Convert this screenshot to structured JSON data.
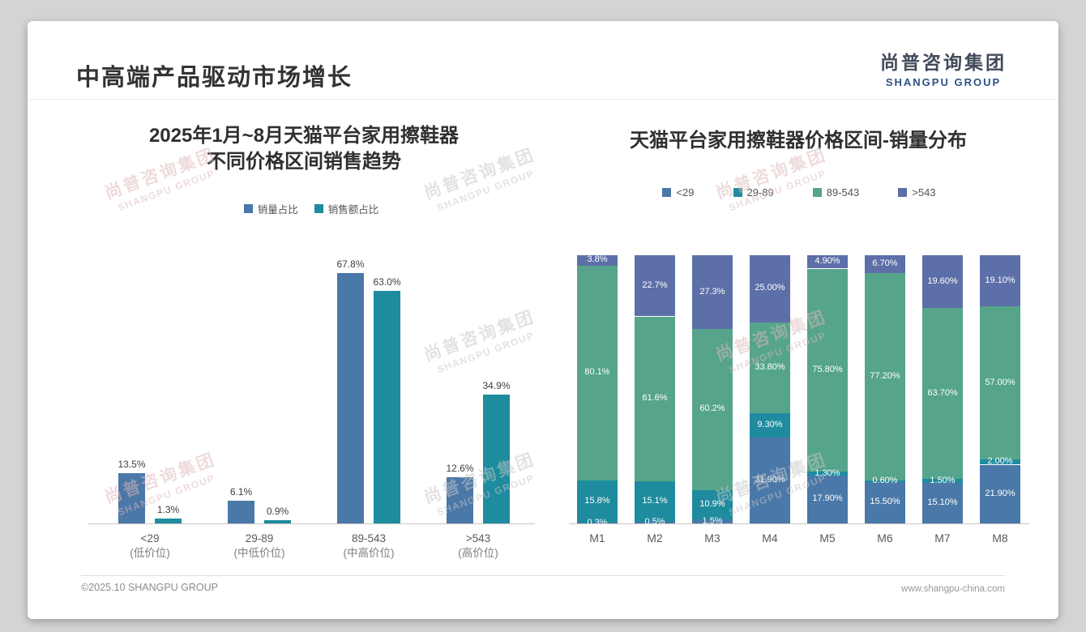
{
  "slide": {
    "title": "中高端产品驱动市场增长",
    "logo": {
      "cn": "尚普咨询集团",
      "en": "SHANGPU GROUP"
    },
    "footer": {
      "copyright": "©2025.10 SHANGPU GROUP",
      "website": "www.shangpu-china.com"
    },
    "watermark": {
      "line1": "尚普咨询集团",
      "line2": "SHANGPU GROUP"
    }
  },
  "colors": {
    "blue": "#4a78a8",
    "teal": "#1e8c9e",
    "green": "#55a48b",
    "purple": "#5d6fa8",
    "watermark_gray": "#c6c6c6",
    "watermark_pink": "#dfb9b9"
  },
  "chart_data": [
    {
      "type": "bar",
      "title": "2025年1月~8月天猫平台家用擦鞋器 不同价格区间销售趋势",
      "title_lines": [
        "2025年1月~8月天猫平台家用擦鞋器",
        "不同价格区间销售趋势"
      ],
      "categories": [
        "<29",
        "29-89",
        "89-543",
        ">543"
      ],
      "category_sublabels": [
        "(低价位)",
        "(中低价位)",
        "(中高价位)",
        "(高价位)"
      ],
      "ylim": [
        0,
        75
      ],
      "grid": false,
      "legend_position": "top",
      "series": [
        {
          "name": "销量占比",
          "color": "#4a78a8",
          "values": [
            13.5,
            6.1,
            67.8,
            12.6
          ],
          "labels": [
            "13.5%",
            "6.1%",
            "67.8%",
            "12.6%"
          ]
        },
        {
          "name": "销售额占比",
          "color": "#1e8c9e",
          "values": [
            1.3,
            0.9,
            63.0,
            34.9
          ],
          "labels": [
            "1.3%",
            "0.9%",
            "63.0%",
            "34.9%"
          ]
        }
      ]
    },
    {
      "type": "bar",
      "stacked": true,
      "percent_stacked": true,
      "title": "天猫平台家用擦鞋器价格区间-销量分布",
      "categories": [
        "M1",
        "M2",
        "M3",
        "M4",
        "M5",
        "M6",
        "M7",
        "M8"
      ],
      "ylim": [
        0,
        100
      ],
      "grid": false,
      "legend_position": "top",
      "series": [
        {
          "name": "<29",
          "color": "#4a78a8",
          "values": [
            0.3,
            0.5,
            1.5,
            31.9,
            17.9,
            15.5,
            15.1,
            21.9
          ],
          "labels": [
            "0.3%",
            "0.5%",
            "1.5%",
            "31.90%",
            "17.90%",
            "15.50%",
            "15.10%",
            "21.90%"
          ]
        },
        {
          "name": "29-89",
          "color": "#1e8c9e",
          "values": [
            15.8,
            15.1,
            10.9,
            9.3,
            1.3,
            0.6,
            1.5,
            2.0
          ],
          "labels": [
            "15.8%",
            "15.1%",
            "10.9%",
            "9.30%",
            "1.30%",
            "0.60%",
            "1.50%",
            "2.00%"
          ]
        },
        {
          "name": "89-543",
          "color": "#55a48b",
          "values": [
            80.1,
            61.6,
            60.2,
            33.8,
            75.8,
            77.2,
            63.7,
            57.0
          ],
          "labels": [
            "80.1%",
            "61.6%",
            "60.2%",
            "33.80%",
            "75.80%",
            "77.20%",
            "63.70%",
            "57.00%"
          ]
        },
        {
          "name": ">543",
          "color": "#5d6fa8",
          "values": [
            3.8,
            22.7,
            27.3,
            25.0,
            4.9,
            6.7,
            19.6,
            19.1
          ],
          "labels": [
            "3.8%",
            "22.7%",
            "27.3%",
            "25.00%",
            "4.90%",
            "6.70%",
            "19.60%",
            "19.10%"
          ]
        }
      ]
    }
  ]
}
